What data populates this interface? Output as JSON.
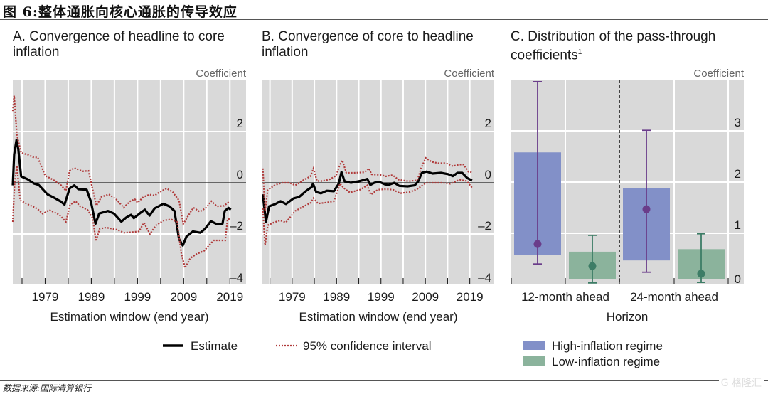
{
  "figure": {
    "title": "图 6:整体通胀向核心通胀的传导效应",
    "source": "数据来源:国际清算银行",
    "watermark": "G 格隆汇"
  },
  "colors": {
    "plot_bg": "#d9d9d9",
    "estimate": "#000000",
    "ci": "#b03a3a",
    "high_bar": "#8290c8",
    "high_whisker": "#6a3d8a",
    "low_bar": "#8bb39c",
    "low_whisker": "#3d7d66"
  },
  "legend_lines": {
    "estimate": "Estimate",
    "ci": "95% confidence interval"
  },
  "legend_bars": {
    "high": "High-inflation regime",
    "low": "Low-inflation regime"
  },
  "chart_data": [
    {
      "type": "line",
      "title": "A. Convergence of headline to core inflation",
      "title_line1": "A. Convergence of headline to core",
      "title_line2": "inflation",
      "ylabel": "Coefficient",
      "xlabel": "Estimation window (end year)",
      "xlim": [
        1972,
        2022.5
      ],
      "ylim": [
        -4,
        4
      ],
      "yticks": [
        2,
        0,
        -2,
        -4
      ],
      "ytick_labels": [
        "2",
        "0",
        "–2",
        "–4"
      ],
      "xticks_minor": [
        1974,
        1979,
        1984,
        1989,
        1994,
        1999,
        2004,
        2009,
        2014,
        2019
      ],
      "xtick_labels": [
        "1979",
        "1989",
        "1999",
        "2009",
        "2019"
      ],
      "xtick_label_years": [
        1979,
        1989,
        1999,
        2009,
        2019
      ],
      "grid": true,
      "series": [
        {
          "name": "Estimate",
          "style": "solid",
          "x": [
            1972.0,
            1972.3,
            1972.8,
            1973.2,
            1973.8,
            1975.2,
            1976.6,
            1977.6,
            1979.5,
            1981.1,
            1982.4,
            1983.2,
            1984.3,
            1985.3,
            1986.2,
            1988.0,
            1988.9,
            1989.9,
            1990.7,
            1992.6,
            1993.9,
            1995.5,
            1996.6,
            1997.6,
            1998.2,
            1999.8,
            2000.6,
            2001.6,
            2002.7,
            2004.6,
            2005.9,
            2007.0,
            2008.0,
            2008.8,
            2009.6,
            2011.0,
            2012.6,
            2013.6,
            2014.9,
            2016.0,
            2017.4,
            2017.9,
            2018.7,
            2019.2
          ],
          "y": [
            -0.1,
            1.1,
            1.67,
            1.3,
            0.25,
            0.14,
            -0.03,
            -0.08,
            -0.45,
            -0.6,
            -0.73,
            -0.85,
            -0.22,
            -0.1,
            -0.25,
            -0.27,
            -0.73,
            -1.6,
            -1.2,
            -1.1,
            -1.2,
            -1.52,
            -1.35,
            -1.25,
            -1.38,
            -1.15,
            -1.05,
            -1.28,
            -1.0,
            -0.82,
            -0.92,
            -1.1,
            -2.2,
            -2.45,
            -2.1,
            -1.9,
            -1.95,
            -1.8,
            -1.5,
            -1.6,
            -1.6,
            -1.1,
            -0.98,
            -1.05
          ]
        },
        {
          "name": "95% CI upper",
          "style": "dotted",
          "x": [
            1972.0,
            1972.3,
            1972.9,
            1973.8,
            1975.2,
            1976.4,
            1977.4,
            1979.0,
            1980.8,
            1982.4,
            1983.5,
            1984.3,
            1985.3,
            1987.1,
            1988.4,
            1989.3,
            1990.1,
            1991.2,
            1992.8,
            1994.5,
            1996.0,
            1997.4,
            1998.4,
            1999.0,
            2000.3,
            2001.6,
            2002.7,
            2003.8,
            2005.3,
            2006.6,
            2008.0,
            2008.9,
            2010.0,
            2011.1,
            2012.5,
            2013.9,
            2015.0,
            2016.2,
            2017.7,
            2019.0
          ],
          "y": [
            2.8,
            3.4,
            1.86,
            1.17,
            1.1,
            1.0,
            0.99,
            0.28,
            0.11,
            -0.08,
            -0.31,
            0.47,
            0.58,
            0.45,
            0.47,
            -0.27,
            -0.89,
            -0.55,
            -0.45,
            -0.66,
            -0.97,
            -0.72,
            -0.64,
            -0.78,
            -0.55,
            -0.46,
            -0.5,
            -0.36,
            -0.22,
            -0.36,
            -0.69,
            -1.61,
            -1.28,
            -0.97,
            -1.13,
            -0.97,
            -0.72,
            -0.92,
            -0.9,
            -0.72
          ]
        },
        {
          "name": "95% CI lower",
          "style": "dotted",
          "x": [
            1972.0,
            1972.4,
            1972.9,
            1973.6,
            1975.5,
            1977.2,
            1978.5,
            1979.9,
            1982.1,
            1983.5,
            1984.4,
            1985.6,
            1986.6,
            1988.2,
            1989.3,
            1990.0,
            1990.8,
            1992.2,
            1994.5,
            1996.1,
            1997.7,
            1999.3,
            2000.4,
            2001.7,
            2003.0,
            2004.7,
            2006.3,
            2007.6,
            2008.5,
            2009.3,
            2010.4,
            2011.8,
            2013.4,
            2015.5,
            2018.0,
            2018.5,
            2019.0
          ],
          "y": [
            -1.53,
            0.0,
            0.66,
            -0.69,
            -0.86,
            -1.0,
            -1.21,
            -1.06,
            -1.25,
            -1.53,
            -0.86,
            -0.72,
            -0.92,
            -1.06,
            -1.39,
            -2.28,
            -1.8,
            -1.75,
            -1.83,
            -1.95,
            -1.93,
            -1.9,
            -1.56,
            -2.0,
            -1.66,
            -1.47,
            -1.43,
            -1.53,
            -2.78,
            -3.33,
            -2.95,
            -2.78,
            -2.66,
            -2.25,
            -2.25,
            -1.42,
            -1.42
          ]
        }
      ]
    },
    {
      "type": "line",
      "title": "B. Convergence of core to headline inflation",
      "title_line1": "B. Convergence of core to headline",
      "title_line2": "inflation",
      "ylabel": "Coefficient",
      "xlabel": "Estimation window (end year)",
      "xlim": [
        1972.3,
        2024.5
      ],
      "ylim": [
        -4,
        4
      ],
      "yticks": [
        2,
        0,
        -2,
        -4
      ],
      "ytick_labels": [
        "2",
        "0",
        "–2",
        "–4"
      ],
      "xticks_minor": [
        1974,
        1979,
        1984,
        1989,
        1994,
        1999,
        2004,
        2009,
        2014,
        2019
      ],
      "xtick_labels": [
        "1979",
        "1989",
        "1999",
        "2009",
        "2019"
      ],
      "xtick_label_years": [
        1979,
        1989,
        1999,
        2009,
        2019
      ],
      "grid": true,
      "series": [
        {
          "name": "Estimate",
          "style": "solid",
          "x": [
            1972.4,
            1973.1,
            1973.8,
            1975.2,
            1976.4,
            1977.6,
            1979.3,
            1980.6,
            1982.2,
            1983.4,
            1983.7,
            1984.4,
            1985.5,
            1986.8,
            1988.4,
            1989.5,
            1990.1,
            1990.8,
            1992.2,
            1994.3,
            1995.9,
            1996.6,
            1997.5,
            1998.6,
            1999.9,
            2000.7,
            2002.0,
            2003.1,
            2005.0,
            2006.6,
            2007.4,
            2008.2,
            2009.3,
            2010.6,
            2012.5,
            2014.1,
            2015.2,
            2016.2,
            2017.3,
            2018.4,
            2019.5
          ],
          "y": [
            -0.45,
            -1.53,
            -0.92,
            -0.83,
            -0.72,
            -0.83,
            -0.61,
            -0.55,
            -0.31,
            -0.17,
            -0.03,
            -0.36,
            -0.41,
            -0.31,
            -0.33,
            -0.03,
            0.42,
            0.06,
            0.0,
            0.07,
            0.15,
            -0.08,
            0.0,
            0.04,
            -0.06,
            -0.08,
            0.0,
            -0.12,
            -0.14,
            -0.1,
            0.06,
            0.39,
            0.44,
            0.36,
            0.39,
            0.34,
            0.26,
            0.39,
            0.39,
            0.19,
            0.09
          ]
        },
        {
          "name": "95% CI upper",
          "style": "dotted",
          "x": [
            1972.4,
            1972.9,
            1973.5,
            1975.2,
            1976.8,
            1978.4,
            1979.7,
            1981.6,
            1983.1,
            1983.8,
            1984.6,
            1985.9,
            1987.5,
            1988.9,
            1989.7,
            1990.3,
            1991.2,
            1992.9,
            1995.3,
            1996.3,
            1996.9,
            1999.3,
            2000.0,
            2001.6,
            2003.0,
            2005.2,
            2007.2,
            2008.0,
            2009.1,
            2010.4,
            2012.0,
            2013.6,
            2015.2,
            2016.5,
            2017.6,
            2018.7,
            2019.5
          ],
          "y": [
            0.56,
            -1.1,
            -0.28,
            -0.08,
            0.0,
            0.0,
            -0.1,
            0.11,
            0.25,
            0.56,
            0.07,
            0.07,
            0.14,
            0.28,
            0.69,
            0.88,
            0.39,
            0.39,
            0.41,
            0.56,
            0.33,
            0.3,
            0.25,
            0.3,
            0.12,
            0.06,
            0.1,
            0.56,
            0.97,
            0.82,
            0.76,
            0.77,
            0.65,
            0.71,
            0.71,
            0.43,
            0.41
          ]
        },
        {
          "name": "95% CI lower",
          "style": "dotted",
          "x": [
            1972.4,
            1972.9,
            1973.5,
            1974.9,
            1976.3,
            1977.6,
            1979.7,
            1981.6,
            1983.2,
            1983.8,
            1984.8,
            1986.8,
            1988.4,
            1989.8,
            1990.6,
            1992.0,
            1994.3,
            1995.9,
            1996.7,
            1998.3,
            2000.1,
            2001.7,
            2003.3,
            2005.5,
            2007.1,
            2008.2,
            2009.2,
            2010.8,
            2013.0,
            2014.6,
            2016.7,
            2018.3,
            2019.5
          ],
          "y": [
            -1.0,
            -2.44,
            -1.66,
            -1.55,
            -1.47,
            -1.55,
            -1.1,
            -0.92,
            -0.78,
            -0.6,
            -0.81,
            -0.77,
            -0.72,
            -0.03,
            -0.2,
            -0.38,
            -0.27,
            -0.1,
            -0.46,
            -0.27,
            -0.25,
            -0.27,
            -0.41,
            -0.36,
            -0.25,
            -0.12,
            0.0,
            0.0,
            0.0,
            -0.04,
            0.12,
            0.07,
            -0.19
          ]
        }
      ]
    },
    {
      "type": "bar",
      "title": "C. Distribution of the pass-through coefficients",
      "title_line1": "C. Distribution of the pass-through",
      "title_line2": "coefficients",
      "title_footnote": "1",
      "ylabel": "Coefficient",
      "xlabel": "Horizon",
      "categories": [
        "12-month ahead",
        "24-month ahead"
      ],
      "ylim": [
        0,
        4
      ],
      "yticks": [
        3,
        2,
        1,
        0
      ],
      "ytick_labels": [
        "3",
        "2",
        "1",
        "0"
      ],
      "grid": true,
      "series": [
        {
          "name": "High-inflation regime",
          "box_low": [
            0.57,
            0.47
          ],
          "box_high": [
            2.58,
            1.88
          ],
          "point": [
            0.79,
            1.47
          ],
          "whisker_low": [
            0.4,
            0.24
          ],
          "whisker_high": [
            3.96,
            3.01
          ]
        },
        {
          "name": "Low-inflation regime",
          "box_low": [
            0.1,
            0.11
          ],
          "box_high": [
            0.64,
            0.69
          ],
          "point": [
            0.36,
            0.21
          ],
          "whisker_low": [
            0.03,
            0.04
          ],
          "whisker_high": [
            0.96,
            0.99
          ]
        }
      ]
    }
  ]
}
